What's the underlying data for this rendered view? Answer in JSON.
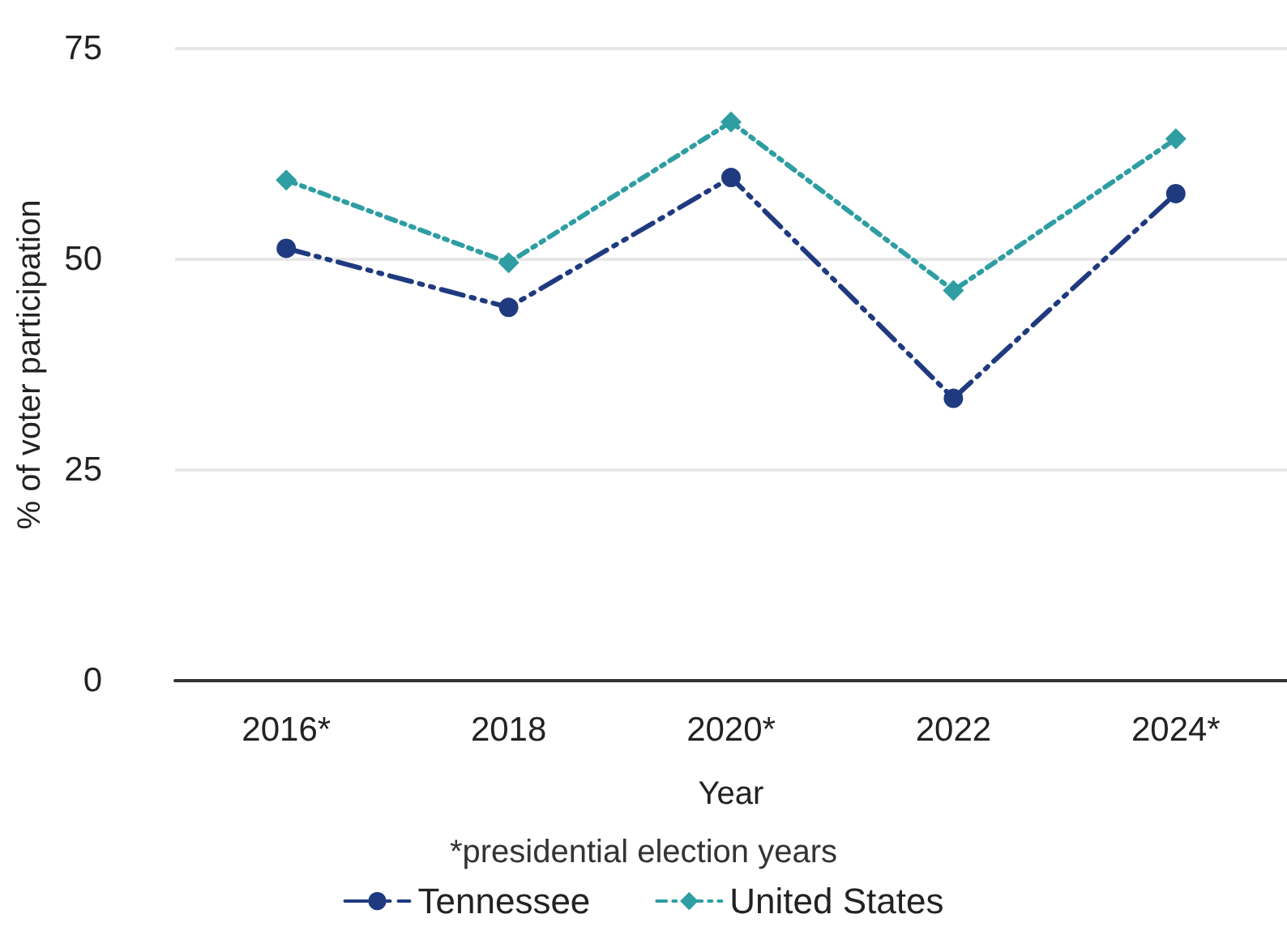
{
  "chart_data": {
    "type": "line",
    "xlabel": "Year",
    "ylabel": "% of voter participation",
    "categories": [
      "2016*",
      "2018",
      "2020*",
      "2022",
      "2024*"
    ],
    "series": [
      {
        "name": "Tennessee",
        "color": "#1f3a7f",
        "values": [
          51.3,
          44.3,
          59.7,
          33.5,
          57.8
        ],
        "marker": "circle",
        "line_style": "dashed"
      },
      {
        "name": "United States",
        "color": "#2e9ea3",
        "values": [
          59.4,
          49.6,
          66.3,
          46.3,
          64.3
        ],
        "marker": "diamond",
        "line_style": "dotted"
      }
    ],
    "ylim": [
      0,
      75
    ],
    "yticks": [
      0,
      25,
      50,
      75
    ],
    "grid": "y",
    "legend": "bottom",
    "annotations": [
      "*presidential election years"
    ]
  }
}
